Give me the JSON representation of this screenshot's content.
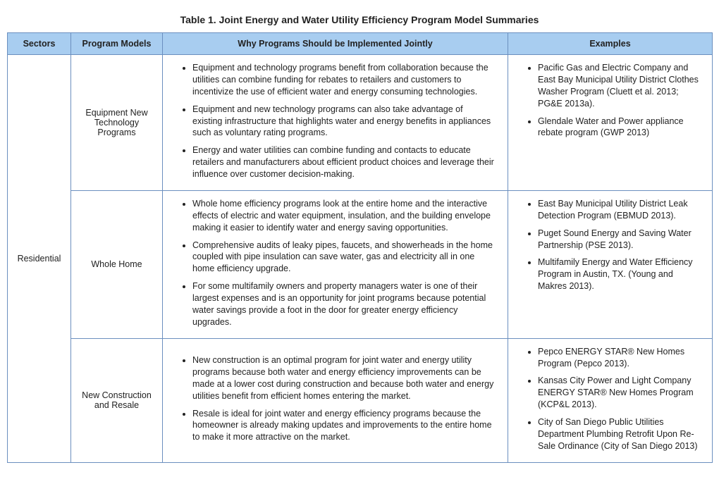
{
  "title": "Table 1. Joint Energy and Water Utility Efficiency Program Model Summaries",
  "headers": {
    "sectors": "Sectors",
    "program": "Program Models",
    "why": "Why Programs Should be Implemented Jointly",
    "examples": "Examples"
  },
  "sector": "Residential",
  "rows": [
    {
      "program": "Equipment New Technology Programs",
      "why": [
        "Equipment and technology programs benefit from collaboration because the utilities can combine funding for rebates to retailers and customers to incentivize the use of efficient water and energy consuming technologies.",
        "Equipment and new technology programs can also take advantage of existing infrastructure that highlights water and energy benefits in appliances such as voluntary rating programs.",
        "Energy and water utilities can combine funding and contacts to educate retailers and manufacturers about efficient product choices and leverage their influence over customer decision-making."
      ],
      "examples": [
        "Pacific Gas and Electric Company and East Bay Municipal Utility District Clothes Washer Program (Cluett et al. 2013; PG&E 2013a).",
        "Glendale Water and Power appliance rebate program (GWP 2013)"
      ]
    },
    {
      "program": "Whole Home",
      "why": [
        "Whole home efficiency programs look at the entire home and the interactive effects of electric and water equipment, insulation, and the building envelope making it easier to identify water and energy saving opportunities.",
        "Comprehensive audits of leaky pipes, faucets, and showerheads in the home coupled with pipe insulation can save water, gas and electricity all in one home efficiency upgrade.",
        "For some multifamily owners and property managers water is one of their largest expenses and is an opportunity for joint programs because potential water savings provide a foot in the door for greater energy efficiency upgrades."
      ],
      "examples": [
        "East Bay Municipal Utility District Leak Detection Program (EBMUD 2013).",
        "Puget Sound Energy and Saving Water Partnership (PSE 2013).",
        "Multifamily Energy and Water Efficiency Program in Austin, TX. (Young and Makres 2013)."
      ]
    },
    {
      "program": "New Construction and Resale",
      "why": [
        "New construction is an optimal program for joint water and energy utility programs because both water and energy efficiency improvements can be made at a lower cost during construction and because both water and energy utilities benefit from efficient homes entering the market.",
        "Resale is ideal for joint water and energy efficiency programs because the homeowner is already making updates and improvements to the entire home to make it more attractive on the market."
      ],
      "examples": [
        "Pepco ENERGY STAR® New Homes Program (Pepco 2013).",
        "Kansas City Power and Light Company ENERGY STAR® New Homes Program (KCP&L 2013).",
        "City of San Diego Public Utilities Department Plumbing Retrofit Upon Re-Sale Ordinance (City of San Diego 2013)"
      ]
    }
  ],
  "colors": {
    "header_bg": "#a8cdf0",
    "border": "#6b8fbf",
    "text": "#222222",
    "background": "#ffffff"
  }
}
